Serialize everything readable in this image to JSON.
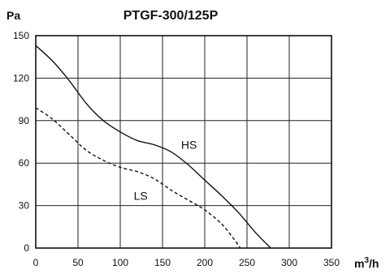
{
  "chart_data": {
    "type": "line",
    "title": "PTGF-300/125P",
    "ylabel": "Pa",
    "xlabel_base": "m",
    "xlabel_sup": "3",
    "xlabel_tail": "/h",
    "xlim": [
      0,
      350
    ],
    "ylim": [
      0,
      150
    ],
    "x_ticks": [
      0,
      50,
      100,
      150,
      200,
      250,
      300,
      350
    ],
    "y_ticks": [
      0,
      30,
      60,
      90,
      120,
      150
    ],
    "grid": true,
    "series": [
      {
        "name": "HS",
        "style": "solid",
        "label_at": [
          172,
          70
        ],
        "points": [
          [
            0,
            143
          ],
          [
            20,
            132
          ],
          [
            40,
            118
          ],
          [
            60,
            102
          ],
          [
            80,
            90
          ],
          [
            100,
            82
          ],
          [
            120,
            76
          ],
          [
            140,
            73
          ],
          [
            160,
            68
          ],
          [
            180,
            59
          ],
          [
            200,
            48
          ],
          [
            220,
            37
          ],
          [
            240,
            25
          ],
          [
            260,
            11
          ],
          [
            278,
            0
          ]
        ]
      },
      {
        "name": "LS",
        "style": "dashed",
        "label_at": [
          116,
          34
        ],
        "points": [
          [
            0,
            99
          ],
          [
            20,
            91
          ],
          [
            40,
            80
          ],
          [
            60,
            69
          ],
          [
            80,
            62
          ],
          [
            100,
            57
          ],
          [
            120,
            54
          ],
          [
            140,
            49
          ],
          [
            160,
            41
          ],
          [
            180,
            34
          ],
          [
            200,
            27
          ],
          [
            220,
            17
          ],
          [
            235,
            6
          ],
          [
            242,
            0
          ]
        ]
      }
    ]
  }
}
